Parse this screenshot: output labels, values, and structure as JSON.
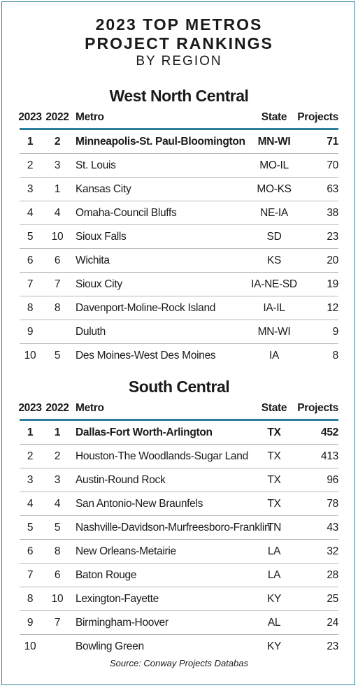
{
  "title_line1": "2023 TOP METROS",
  "title_line2": "PROJECT RANKINGS",
  "subtitle": "BY REGION",
  "columns": {
    "y2023": "2023",
    "y2022": "2022",
    "metro": "Metro",
    "state": "State",
    "projects": "Projects"
  },
  "regions": [
    {
      "name": "West North Central",
      "rows": [
        {
          "r2023": "1",
          "r2022": "2",
          "metro": "Minneapolis-St. Paul-Bloomington",
          "state": "MN-WI",
          "projects": "71",
          "bold": true
        },
        {
          "r2023": "2",
          "r2022": "3",
          "metro": "St. Louis",
          "state": "MO-IL",
          "projects": "70"
        },
        {
          "r2023": "3",
          "r2022": "1",
          "metro": "Kansas City",
          "state": "MO-KS",
          "projects": "63"
        },
        {
          "r2023": "4",
          "r2022": "4",
          "metro": "Omaha-Council Bluffs",
          "state": "NE-IA",
          "projects": "38"
        },
        {
          "r2023": "5",
          "r2022": "10",
          "metro": "Sioux Falls",
          "state": "SD",
          "projects": "23"
        },
        {
          "r2023": "6",
          "r2022": "6",
          "metro": "Wichita",
          "state": "KS",
          "projects": "20"
        },
        {
          "r2023": "7",
          "r2022": "7",
          "metro": "Sioux City",
          "state": "IA-NE-SD",
          "projects": "19"
        },
        {
          "r2023": "8",
          "r2022": "8",
          "metro": "Davenport-Moline-Rock Island",
          "state": "IA-IL",
          "projects": "12"
        },
        {
          "r2023": "9",
          "r2022": "",
          "metro": "Duluth",
          "state": "MN-WI",
          "projects": "9"
        },
        {
          "r2023": "10",
          "r2022": "5",
          "metro": "Des Moines-West Des Moines",
          "state": "IA",
          "projects": "8"
        }
      ]
    },
    {
      "name": "South Central",
      "rows": [
        {
          "r2023": "1",
          "r2022": "1",
          "metro": "Dallas-Fort Worth-Arlington",
          "state": "TX",
          "projects": "452",
          "bold": true
        },
        {
          "r2023": "2",
          "r2022": "2",
          "metro": "Houston-The Woodlands-Sugar Land",
          "state": "TX",
          "projects": "413"
        },
        {
          "r2023": "3",
          "r2022": "3",
          "metro": "Austin-Round Rock",
          "state": "TX",
          "projects": "96"
        },
        {
          "r2023": "4",
          "r2022": "4",
          "metro": "San Antonio-New Braunfels",
          "state": "TX",
          "projects": "78"
        },
        {
          "r2023": "5",
          "r2022": "5",
          "metro": "Nashville-Davidson-Murfreesboro-Franklin",
          "state": "TN",
          "projects": "43"
        },
        {
          "r2023": "6",
          "r2022": "8",
          "metro": "New Orleans-Metairie",
          "state": "LA",
          "projects": "32"
        },
        {
          "r2023": "7",
          "r2022": "6",
          "metro": "Baton Rouge",
          "state": "LA",
          "projects": "28"
        },
        {
          "r2023": "8",
          "r2022": "10",
          "metro": "Lexington-Fayette",
          "state": "KY",
          "projects": "25"
        },
        {
          "r2023": "9",
          "r2022": "7",
          "metro": "Birmingham-Hoover",
          "state": "AL",
          "projects": "24"
        },
        {
          "r2023": "10",
          "r2022": "",
          "metro": "Bowling Green",
          "state": "KY",
          "projects": "23"
        }
      ]
    }
  ],
  "source": "Source: Conway Projects Databas",
  "colors": {
    "accent": "#2b7d9e",
    "divider": "#b9b9b9"
  }
}
